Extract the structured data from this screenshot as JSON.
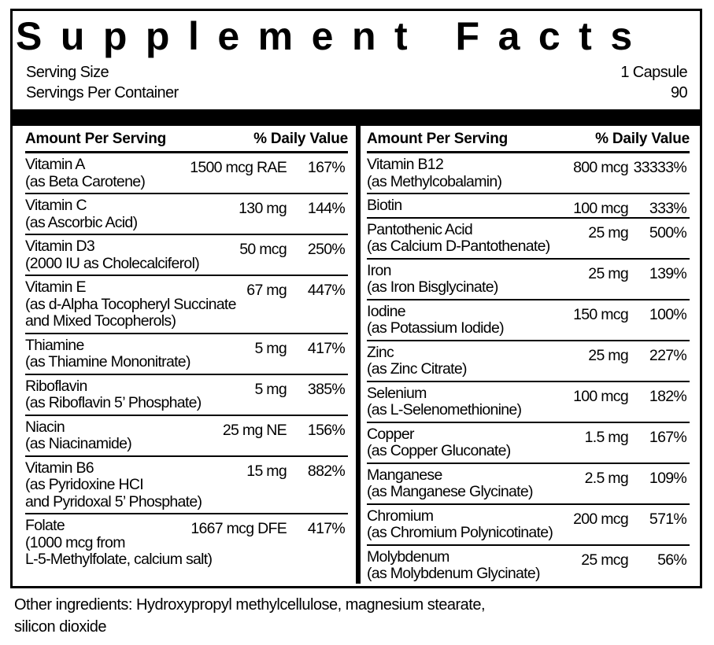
{
  "title": "Supplement Facts",
  "serving": {
    "size_label": "Serving Size",
    "size_value": "1 Capsule",
    "per_container_label": "Servings Per Container",
    "per_container_value": "90"
  },
  "columns": [
    {
      "header": {
        "amount": "Amount Per Serving",
        "dv": "% Daily Value"
      },
      "rows": [
        {
          "name": "Vitamin A",
          "source": [
            "(as Beta Carotene)"
          ],
          "amount": "1500 mcg RAE",
          "dv": "167%"
        },
        {
          "name": "Vitamin C",
          "source": [
            "(as Ascorbic Acid)"
          ],
          "amount": "130 mg",
          "dv": "144%"
        },
        {
          "name": "Vitamin D3",
          "source": [
            "(2000 IU as Cholecalciferol)"
          ],
          "amount": "50 mcg",
          "dv": "250%"
        },
        {
          "name": "Vitamin E",
          "source": [
            "(as d-Alpha Tocopheryl Succinate",
            "and Mixed Tocopherols)"
          ],
          "amount": "67 mg",
          "dv": "447%"
        },
        {
          "name": "Thiamine",
          "source": [
            "(as Thiamine Mononitrate)"
          ],
          "amount": "5 mg",
          "dv": "417%"
        },
        {
          "name": "Riboflavin",
          "source": [
            "(as Riboflavin 5’ Phosphate)"
          ],
          "amount": "5 mg",
          "dv": "385%"
        },
        {
          "name": "Niacin",
          "source": [
            "(as Niacinamide)"
          ],
          "amount": "25 mg NE",
          "dv": "156%"
        },
        {
          "name": "Vitamin B6",
          "source": [
            "(as Pyridoxine HCI",
            "and Pyridoxal 5’ Phosphate)"
          ],
          "amount": "15 mg",
          "dv": "882%"
        },
        {
          "name": "Folate",
          "source": [
            "(1000 mcg from",
            "L-5-Methylfolate, calcium salt)"
          ],
          "amount": "1667 mcg DFE",
          "dv": "417%"
        }
      ]
    },
    {
      "header": {
        "amount": "Amount Per Serving",
        "dv": "% Daily Value"
      },
      "rows": [
        {
          "name": "Vitamin B12",
          "source": [
            "(as Methylcobalamin)"
          ],
          "amount": "800 mcg",
          "dv": "33333%"
        },
        {
          "name": "Biotin",
          "source": [],
          "amount": "100 mcg",
          "dv": "333%"
        },
        {
          "name": "Pantothenic Acid",
          "source": [
            "(as Calcium D-Pantothenate)"
          ],
          "amount": "25 mg",
          "dv": "500%"
        },
        {
          "name": "Iron",
          "source": [
            "(as Iron Bisglycinate)"
          ],
          "amount": "25 mg",
          "dv": "139%"
        },
        {
          "name": "Iodine",
          "source": [
            "(as Potassium Iodide)"
          ],
          "amount": "150 mcg",
          "dv": "100%"
        },
        {
          "name": "Zinc",
          "source": [
            "(as Zinc Citrate)"
          ],
          "amount": "25 mg",
          "dv": "227%"
        },
        {
          "name": "Selenium",
          "source": [
            "(as L-Selenomethionine)"
          ],
          "amount": "100 mcg",
          "dv": "182%"
        },
        {
          "name": "Copper",
          "source": [
            "(as Copper Gluconate)"
          ],
          "amount": "1.5 mg",
          "dv": "167%"
        },
        {
          "name": "Manganese",
          "source": [
            "(as Manganese Glycinate)"
          ],
          "amount": "2.5 mg",
          "dv": "109%"
        },
        {
          "name": "Chromium",
          "source": [
            "(as Chromium Polynicotinate)"
          ],
          "amount": "200 mcg",
          "dv": "571%"
        },
        {
          "name": "Molybdenum",
          "source": [
            "(as Molybdenum Glycinate)"
          ],
          "amount": "25 mcg",
          "dv": "56%"
        }
      ]
    }
  ],
  "other_ingredients": [
    "Other ingredients: Hydroxypropyl methylcellulose, magnesium stearate,",
    "silicon dioxide"
  ]
}
